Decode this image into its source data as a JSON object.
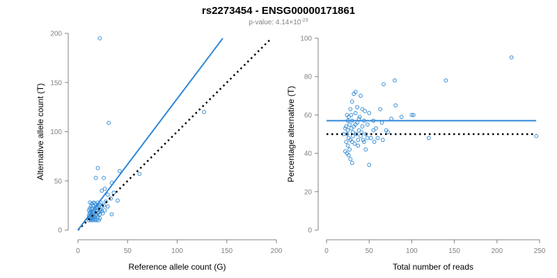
{
  "title": "rs2273454 - ENSG00000171861",
  "subtitle": {
    "prefix": "p-value: 4.14×10",
    "exponent": "-23"
  },
  "colors": {
    "points": "#3a8fd6",
    "fit_line": "#2f86d8",
    "reference_line": "#000000",
    "axis": "#808080"
  },
  "chart_data": [
    {
      "type": "scatter",
      "xlabel": "Reference allele count (G)",
      "ylabel": "Alternative allele count (T)",
      "xlim": [
        0,
        200
      ],
      "ylim": [
        0,
        200
      ],
      "xticks": [
        0,
        50,
        100,
        150,
        200
      ],
      "yticks": [
        0,
        50,
        100,
        150,
        200
      ],
      "fit_line": {
        "x": [
          0,
          146
        ],
        "y": [
          0,
          195
        ]
      },
      "reference_line": {
        "x": [
          0,
          195
        ],
        "y": [
          0,
          195
        ]
      },
      "points": [
        [
          22,
          195
        ],
        [
          31,
          109
        ],
        [
          127,
          120
        ],
        [
          62,
          57
        ],
        [
          42,
          60
        ],
        [
          34,
          48
        ],
        [
          26,
          53
        ],
        [
          20,
          63
        ],
        [
          18,
          53
        ],
        [
          27,
          42
        ],
        [
          24,
          40
        ],
        [
          36,
          38
        ],
        [
          30,
          36
        ],
        [
          33,
          32
        ],
        [
          34,
          16
        ],
        [
          22,
          12
        ],
        [
          40,
          30
        ],
        [
          28,
          29
        ],
        [
          20,
          28
        ],
        [
          16,
          28
        ],
        [
          12,
          28
        ],
        [
          14,
          27
        ],
        [
          18,
          26
        ],
        [
          22,
          26
        ],
        [
          26,
          25
        ],
        [
          24,
          24
        ],
        [
          30,
          24
        ],
        [
          12,
          22
        ],
        [
          14,
          22
        ],
        [
          17,
          22
        ],
        [
          20,
          22
        ],
        [
          23,
          21
        ],
        [
          27,
          20
        ],
        [
          11,
          20
        ],
        [
          13,
          19
        ],
        [
          15,
          19
        ],
        [
          18,
          18
        ],
        [
          21,
          18
        ],
        [
          25,
          17
        ],
        [
          12,
          17
        ],
        [
          14,
          16
        ],
        [
          16,
          16
        ],
        [
          19,
          15
        ],
        [
          11,
          15
        ],
        [
          13,
          14
        ],
        [
          15,
          14
        ],
        [
          17,
          13
        ],
        [
          20,
          13
        ],
        [
          12,
          12
        ],
        [
          14,
          12
        ],
        [
          16,
          11
        ],
        [
          18,
          11
        ],
        [
          11,
          10
        ],
        [
          13,
          10
        ],
        [
          15,
          10
        ],
        [
          17,
          10
        ],
        [
          19,
          10
        ],
        [
          21,
          10
        ],
        [
          12,
          13
        ],
        [
          14,
          18
        ],
        [
          16,
          20
        ],
        [
          13,
          24
        ],
        [
          15,
          25
        ],
        [
          17,
          27
        ],
        [
          19,
          23
        ],
        [
          22,
          16
        ],
        [
          24,
          19
        ],
        [
          11,
          12
        ],
        [
          16,
          14
        ],
        [
          18,
          16
        ],
        [
          13,
          11
        ],
        [
          15,
          12
        ],
        [
          20,
          17
        ],
        [
          22,
          20
        ],
        [
          12,
          18
        ],
        [
          19,
          20
        ],
        [
          21,
          24
        ],
        [
          23,
          28
        ]
      ]
    },
    {
      "type": "scatter",
      "xlabel": "Total number of reads",
      "ylabel": "Percentage alternative (T)",
      "xlim": [
        0,
        250
      ],
      "ylim": [
        0,
        100
      ],
      "xticks": [
        0,
        50,
        100,
        150,
        200,
        250
      ],
      "yticks": [
        0,
        20,
        40,
        60,
        80,
        100
      ],
      "fit_line": {
        "x": [
          0,
          246
        ],
        "y": [
          57,
          57
        ]
      },
      "reference_line": {
        "x": [
          0,
          246
        ],
        "y": [
          50,
          50
        ]
      },
      "points": [
        [
          217,
          90
        ],
        [
          140,
          78
        ],
        [
          80,
          78
        ],
        [
          67,
          76
        ],
        [
          32,
          71
        ],
        [
          34,
          72
        ],
        [
          40,
          70
        ],
        [
          30,
          67
        ],
        [
          63,
          63
        ],
        [
          81,
          65
        ],
        [
          100,
          60
        ],
        [
          102,
          60
        ],
        [
          88,
          59
        ],
        [
          76,
          58
        ],
        [
          45,
          62
        ],
        [
          50,
          61
        ],
        [
          28,
          63
        ],
        [
          36,
          64
        ],
        [
          42,
          63
        ],
        [
          26,
          59
        ],
        [
          24,
          60
        ],
        [
          30,
          57
        ],
        [
          38,
          58
        ],
        [
          44,
          57
        ],
        [
          55,
          57
        ],
        [
          65,
          56
        ],
        [
          70,
          52
        ],
        [
          72,
          51
        ],
        [
          58,
          53
        ],
        [
          48,
          55
        ],
        [
          34,
          55
        ],
        [
          27,
          55
        ],
        [
          23,
          54
        ],
        [
          25,
          52
        ],
        [
          29,
          53
        ],
        [
          31,
          51
        ],
        [
          35,
          50
        ],
        [
          40,
          49
        ],
        [
          46,
          50
        ],
        [
          52,
          48
        ],
        [
          56,
          46
        ],
        [
          60,
          48
        ],
        [
          66,
          47
        ],
        [
          24,
          50
        ],
        [
          26,
          48
        ],
        [
          28,
          47
        ],
        [
          30,
          46
        ],
        [
          33,
          45
        ],
        [
          37,
          44
        ],
        [
          43,
          47
        ],
        [
          25,
          44
        ],
        [
          27,
          42
        ],
        [
          22,
          41
        ],
        [
          24,
          40
        ],
        [
          26,
          39
        ],
        [
          28,
          37
        ],
        [
          30,
          35
        ],
        [
          46,
          42
        ],
        [
          50,
          34
        ],
        [
          120,
          48
        ],
        [
          246,
          49
        ],
        [
          38,
          52
        ],
        [
          32,
          54
        ],
        [
          36,
          56
        ],
        [
          42,
          54
        ],
        [
          22,
          53
        ],
        [
          20,
          50
        ],
        [
          25,
          57
        ],
        [
          29,
          60
        ],
        [
          34,
          61
        ],
        [
          39,
          59
        ],
        [
          44,
          46
        ],
        [
          48,
          48
        ],
        [
          55,
          52
        ],
        [
          23,
          46
        ],
        [
          31,
          49
        ],
        [
          37,
          47
        ],
        [
          41,
          51
        ]
      ]
    }
  ]
}
